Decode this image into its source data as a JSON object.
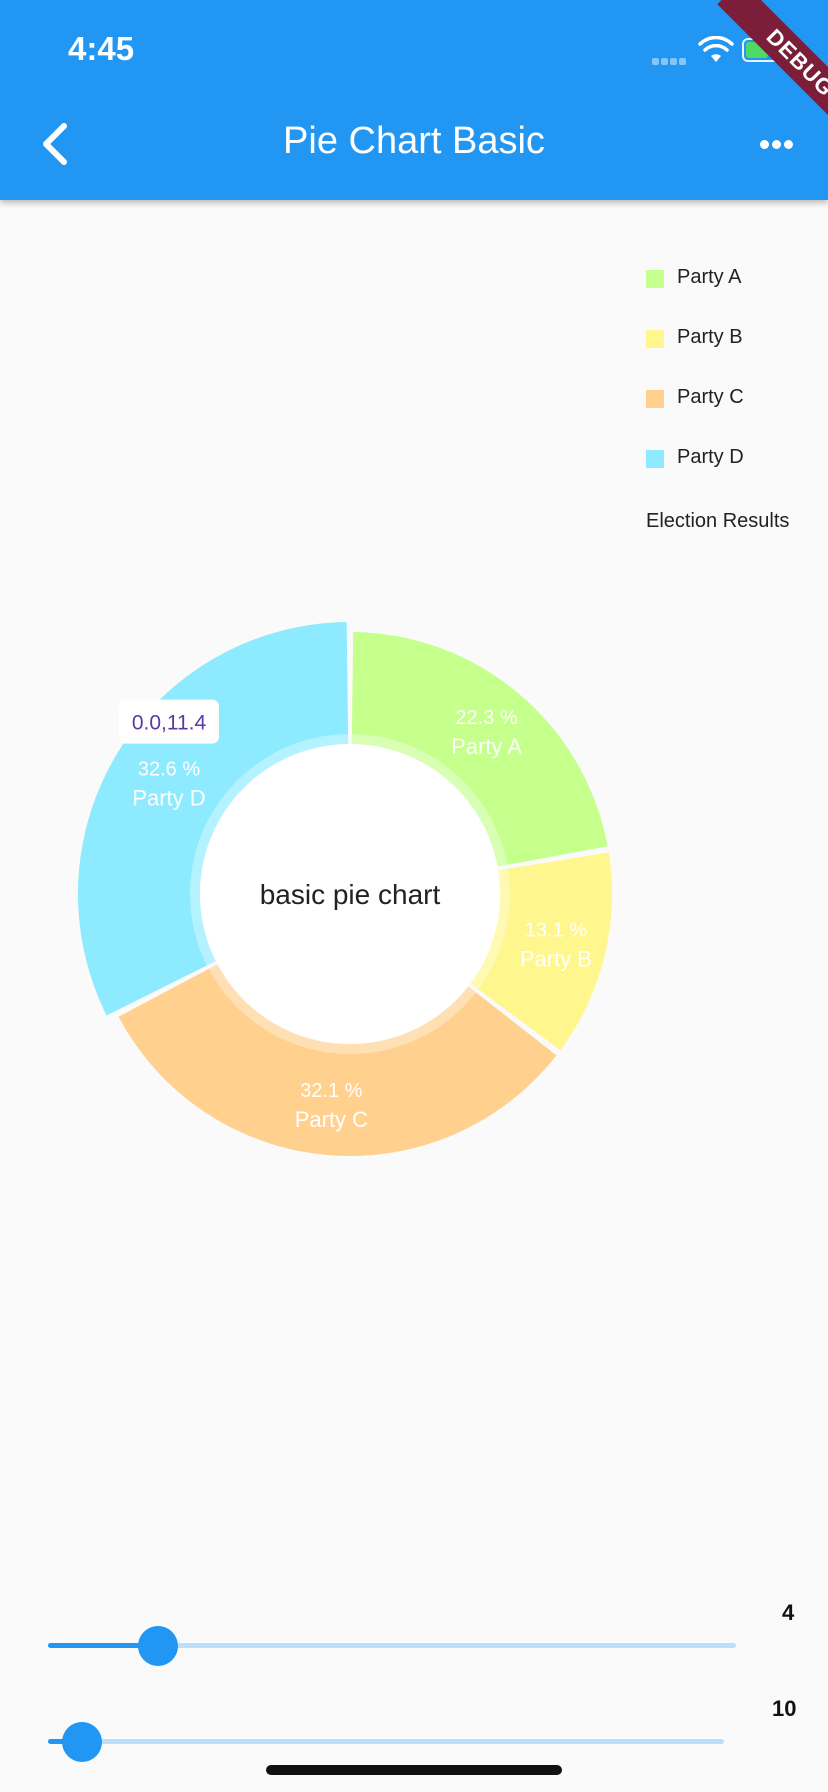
{
  "status_bar": {
    "time": "4:45"
  },
  "app_bar": {
    "title": "Pie Chart Basic",
    "debug_label": "DEBUG"
  },
  "legend": {
    "items": [
      {
        "label": "Party A",
        "color": "#c5ff8c"
      },
      {
        "label": "Party B",
        "color": "#fff68d"
      },
      {
        "label": "Party C",
        "color": "#ffd08e"
      },
      {
        "label": "Party D",
        "color": "#8eebff"
      }
    ],
    "title": "Election Results"
  },
  "chart_data": {
    "type": "pie",
    "center_label": "basic pie chart",
    "labels": [
      "Party A",
      "Party B",
      "Party C",
      "Party D"
    ],
    "values": [
      22.3,
      13.1,
      32.1,
      32.6
    ],
    "value_labels": [
      "22.3 %",
      "13.1 %",
      "32.1 %",
      "32.6 %"
    ],
    "colors": [
      "#c5ff8c",
      "#fff68d",
      "#ffd08e",
      "#8eebff"
    ],
    "selected_index": 3,
    "tooltip": "0.0,11.4",
    "legend": "top-right",
    "legend_title": "Election Results"
  },
  "sliders": [
    {
      "value_label": "4",
      "fraction": 0.16
    },
    {
      "value_label": "10",
      "fraction": 0.05
    }
  ]
}
